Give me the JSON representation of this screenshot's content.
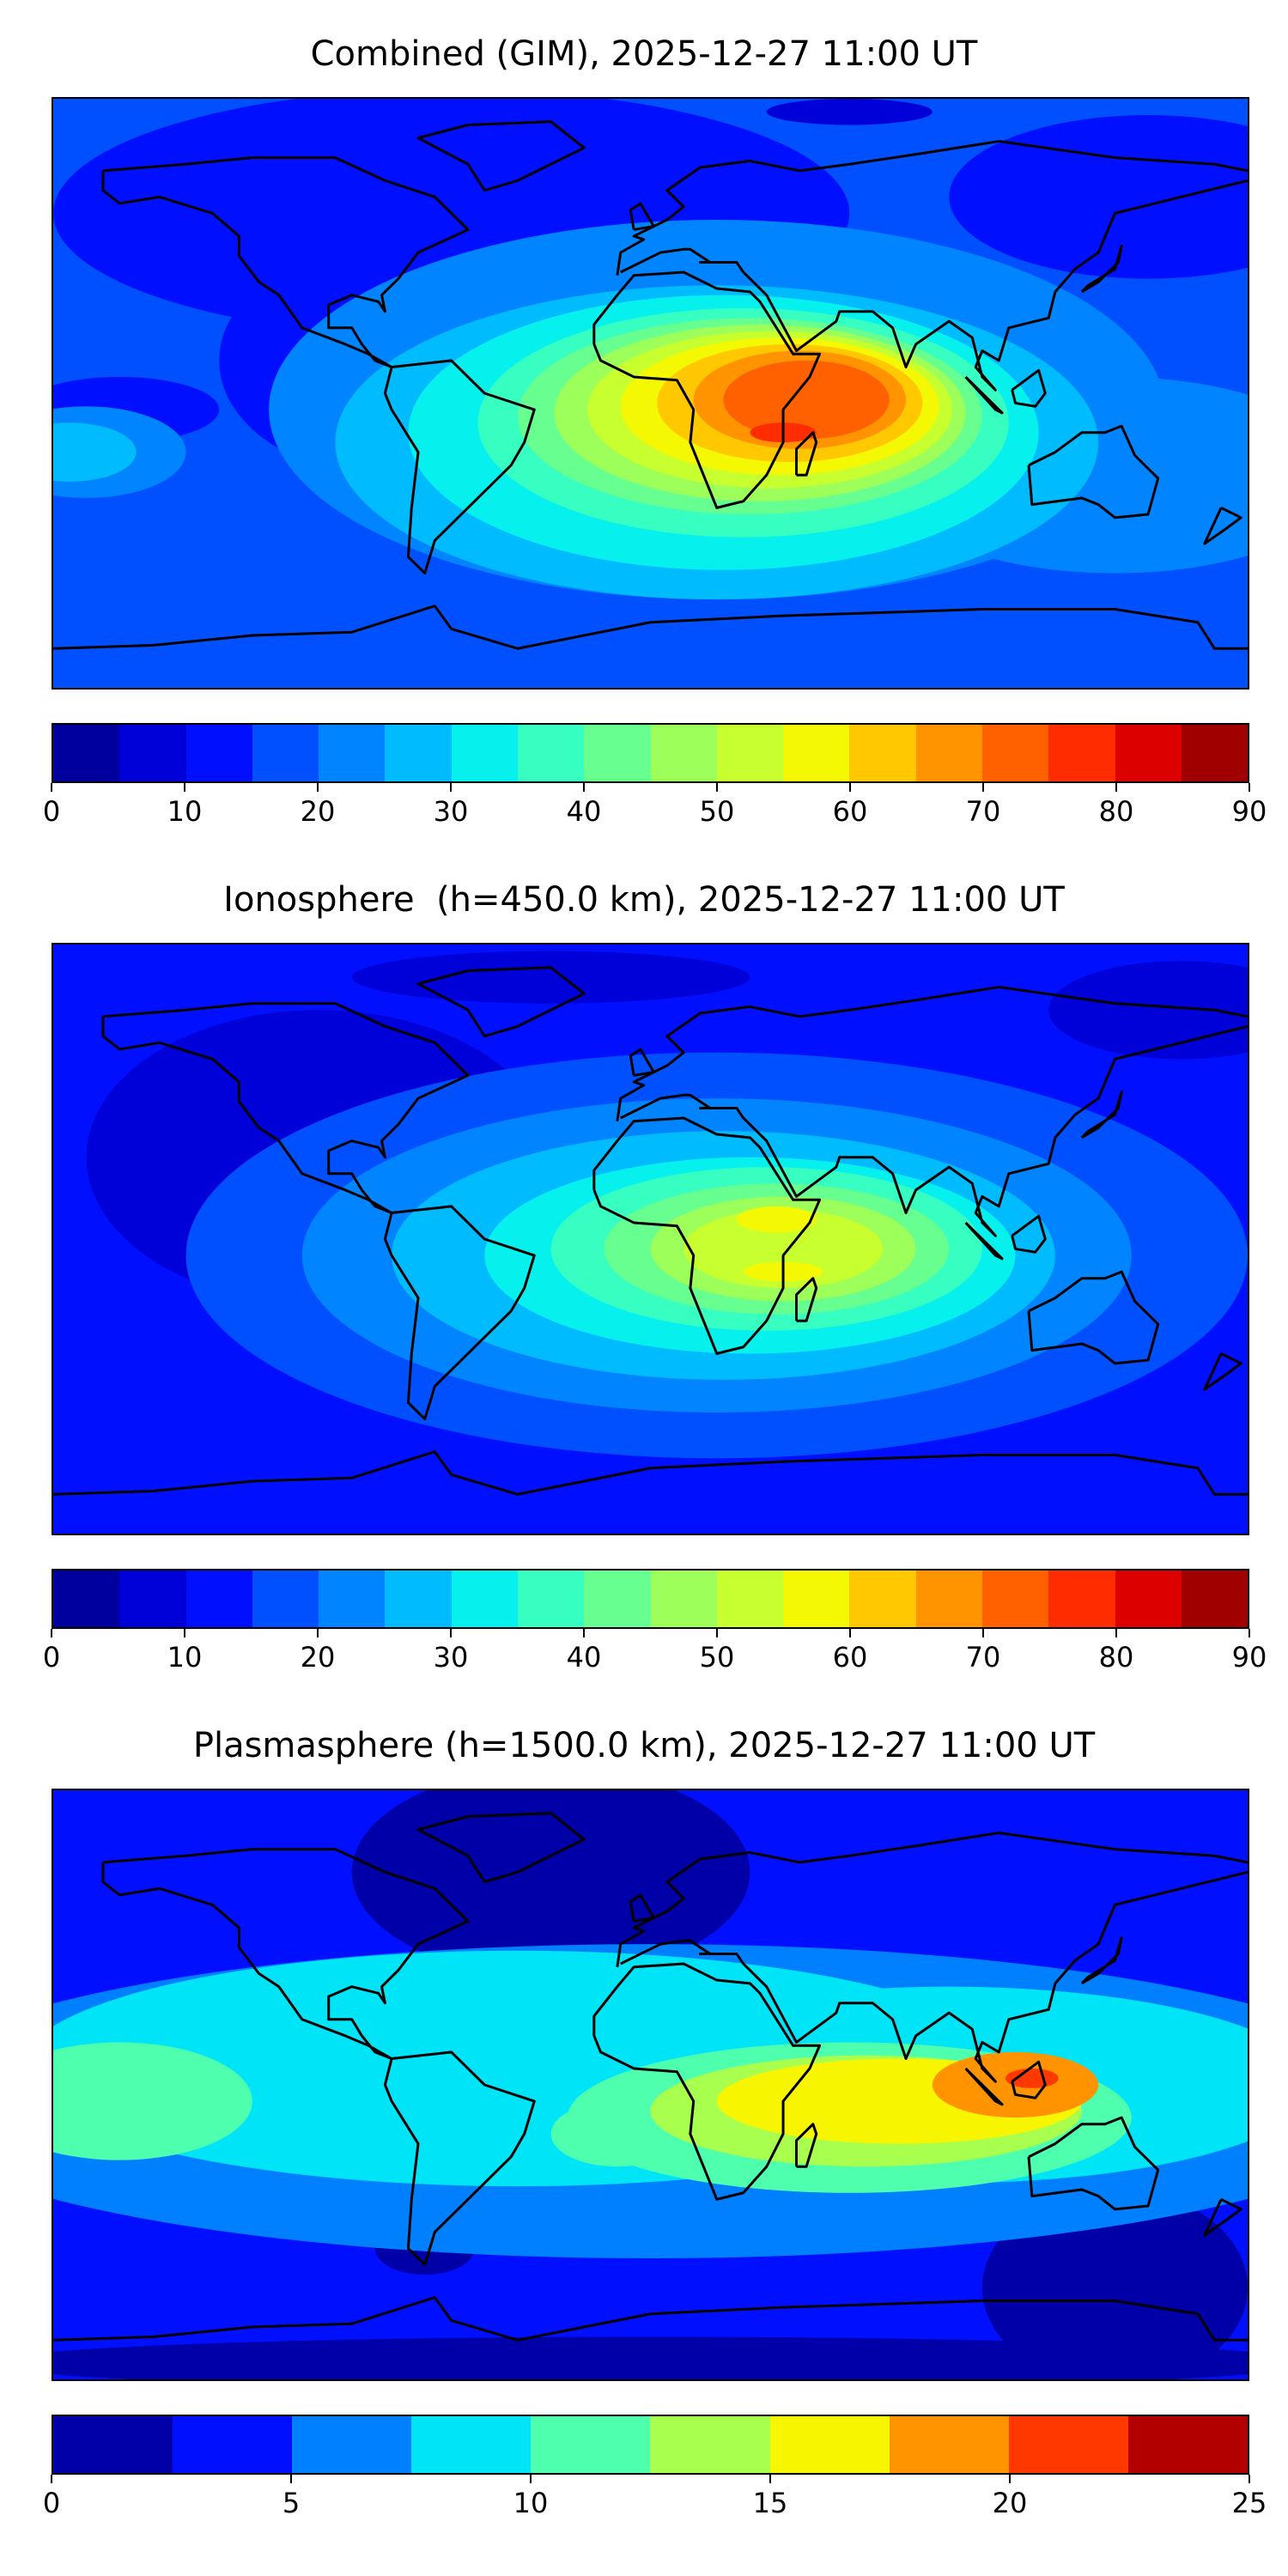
{
  "chart_data": [
    {
      "type": "heatmap",
      "title": "Combined (GIM), 2025-12-27 11:00 UT",
      "projection": "global lon/lat map with coastlines",
      "colorbar": {
        "levels": [
          0,
          5,
          10,
          15,
          20,
          25,
          30,
          35,
          40,
          45,
          50,
          55,
          60,
          65,
          70,
          75,
          80,
          85,
          90
        ],
        "ticks": [
          "0",
          "10",
          "20",
          "30",
          "40",
          "50",
          "60",
          "70",
          "80",
          "90"
        ],
        "range": [
          0,
          90
        ]
      },
      "colors": [
        "#00009f",
        "#0000d8",
        "#0010ff",
        "#0050ff",
        "#0084ff",
        "#00bcff",
        "#06f0ee",
        "#36ffc1",
        "#66ff90",
        "#9cff5a",
        "#c8ff2e",
        "#f4f802",
        "#ffc800",
        "#ff9400",
        "#ff6000",
        "#ff2c00",
        "#dc0000",
        "#a00000"
      ],
      "features": {
        "max_region": "east Africa / western Indian Ocean",
        "approx_max": 80,
        "background": "15-20"
      }
    },
    {
      "type": "heatmap",
      "title": "Ionosphere  (h=450.0 km), 2025-12-27 11:00 UT",
      "projection": "global lon/lat map with coastlines",
      "colorbar": {
        "levels": [
          0,
          5,
          10,
          15,
          20,
          25,
          30,
          35,
          40,
          45,
          50,
          55,
          60,
          65,
          70,
          75,
          80,
          85,
          90
        ],
        "ticks": [
          "0",
          "10",
          "20",
          "30",
          "40",
          "50",
          "60",
          "70",
          "80",
          "90"
        ],
        "range": [
          0,
          90
        ]
      },
      "colors": [
        "#00009f",
        "#0000d8",
        "#0010ff",
        "#0050ff",
        "#0084ff",
        "#00bcff",
        "#06f0ee",
        "#36ffc1",
        "#66ff90",
        "#9cff5a",
        "#c8ff2e",
        "#f4f802",
        "#ffc800",
        "#ff9400",
        "#ff6000",
        "#ff2c00",
        "#dc0000",
        "#a00000"
      ],
      "features": {
        "max_region": "Africa / Arabia",
        "approx_max": 65,
        "background": "10-15"
      }
    },
    {
      "type": "heatmap",
      "title": "Plasmasphere (h=1500.0 km), 2025-12-27 11:00 UT",
      "projection": "global lon/lat map with coastlines",
      "colorbar": {
        "levels": [
          0,
          2.5,
          5,
          7.5,
          10,
          12.5,
          15,
          17.5,
          20,
          22.5,
          25
        ],
        "ticks": [
          "0",
          "5",
          "10",
          "15",
          "20",
          "25"
        ],
        "range": [
          0,
          25
        ]
      },
      "colors": [
        "#0000a8",
        "#0010ff",
        "#0080ff",
        "#00e4f8",
        "#4effad",
        "#a8ff4e",
        "#f8f500",
        "#ff9400",
        "#ff3800",
        "#b20000"
      ],
      "features": {
        "max_region": "Southeast Asia / Borneo",
        "approx_max": 22.5,
        "background": "2.5-5"
      }
    }
  ]
}
